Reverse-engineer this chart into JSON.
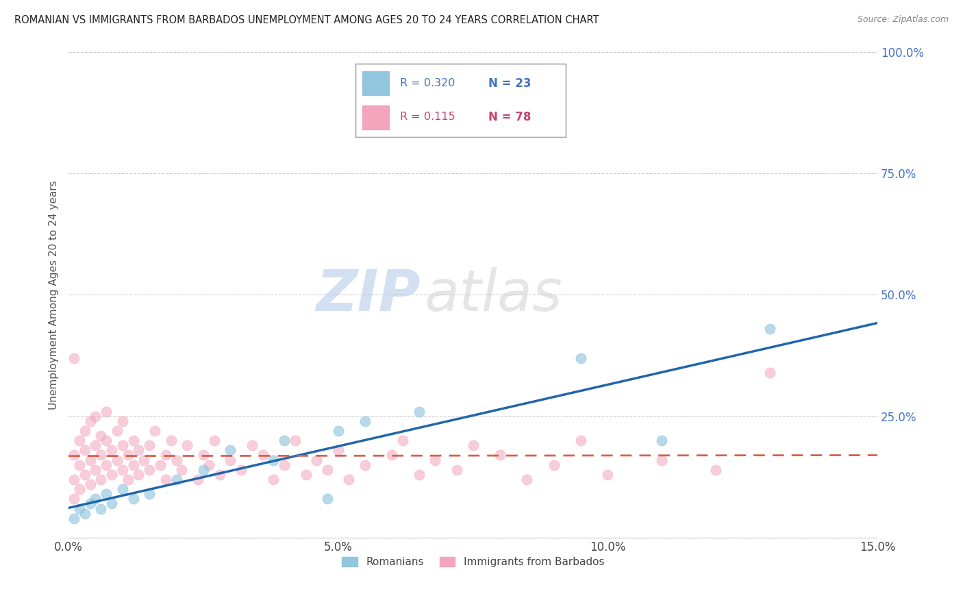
{
  "title": "ROMANIAN VS IMMIGRANTS FROM BARBADOS UNEMPLOYMENT AMONG AGES 20 TO 24 YEARS CORRELATION CHART",
  "source": "Source: ZipAtlas.com",
  "ylabel": "Unemployment Among Ages 20 to 24 years",
  "xlim": [
    0.0,
    0.15
  ],
  "ylim": [
    0.0,
    1.0
  ],
  "xticks": [
    0.0,
    0.05,
    0.1,
    0.15
  ],
  "xtick_labels": [
    "0.0%",
    "5.0%",
    "10.0%",
    "15.0%"
  ],
  "yticks": [
    0.0,
    0.25,
    0.5,
    0.75,
    1.0
  ],
  "ytick_labels": [
    "",
    "25.0%",
    "50.0%",
    "75.0%",
    "100.0%"
  ],
  "romanian_R": 0.32,
  "romanian_N": 23,
  "barbados_R": 0.115,
  "barbados_N": 78,
  "romanian_color": "#92c5de",
  "barbados_color": "#f4a4bc",
  "romanian_line_color": "#2166ac",
  "barbados_line_color": "#d6604d",
  "watermark_zip": "ZIP",
  "watermark_atlas": "atlas",
  "legend_label_romanian": "Romanians",
  "legend_label_barbados": "Immigrants from Barbados",
  "ro_x": [
    0.001,
    0.002,
    0.003,
    0.004,
    0.005,
    0.006,
    0.007,
    0.008,
    0.01,
    0.012,
    0.015,
    0.02,
    0.025,
    0.03,
    0.038,
    0.04,
    0.048,
    0.05,
    0.055,
    0.065,
    0.095,
    0.11,
    0.13
  ],
  "ro_y": [
    0.04,
    0.06,
    0.05,
    0.07,
    0.08,
    0.06,
    0.09,
    0.07,
    0.1,
    0.08,
    0.09,
    0.12,
    0.14,
    0.18,
    0.16,
    0.2,
    0.08,
    0.22,
    0.24,
    0.26,
    0.37,
    0.2,
    0.43
  ],
  "ba_x": [
    0.001,
    0.001,
    0.001,
    0.001,
    0.002,
    0.002,
    0.002,
    0.003,
    0.003,
    0.003,
    0.004,
    0.004,
    0.004,
    0.005,
    0.005,
    0.005,
    0.006,
    0.006,
    0.006,
    0.007,
    0.007,
    0.007,
    0.008,
    0.008,
    0.009,
    0.009,
    0.01,
    0.01,
    0.01,
    0.011,
    0.011,
    0.012,
    0.012,
    0.013,
    0.013,
    0.014,
    0.015,
    0.015,
    0.016,
    0.017,
    0.018,
    0.018,
    0.019,
    0.02,
    0.021,
    0.022,
    0.024,
    0.025,
    0.026,
    0.027,
    0.028,
    0.03,
    0.032,
    0.034,
    0.036,
    0.038,
    0.04,
    0.042,
    0.044,
    0.046,
    0.048,
    0.05,
    0.052,
    0.055,
    0.06,
    0.062,
    0.065,
    0.068,
    0.072,
    0.075,
    0.08,
    0.085,
    0.09,
    0.095,
    0.1,
    0.11,
    0.12,
    0.13
  ],
  "ba_y": [
    0.37,
    0.08,
    0.12,
    0.17,
    0.1,
    0.15,
    0.2,
    0.13,
    0.18,
    0.22,
    0.11,
    0.16,
    0.24,
    0.14,
    0.19,
    0.25,
    0.12,
    0.17,
    0.21,
    0.15,
    0.2,
    0.26,
    0.13,
    0.18,
    0.16,
    0.22,
    0.14,
    0.19,
    0.24,
    0.12,
    0.17,
    0.15,
    0.2,
    0.13,
    0.18,
    0.16,
    0.14,
    0.19,
    0.22,
    0.15,
    0.12,
    0.17,
    0.2,
    0.16,
    0.14,
    0.19,
    0.12,
    0.17,
    0.15,
    0.2,
    0.13,
    0.16,
    0.14,
    0.19,
    0.17,
    0.12,
    0.15,
    0.2,
    0.13,
    0.16,
    0.14,
    0.18,
    0.12,
    0.15,
    0.17,
    0.2,
    0.13,
    0.16,
    0.14,
    0.19,
    0.17,
    0.12,
    0.15,
    0.2,
    0.13,
    0.16,
    0.14,
    0.34
  ]
}
